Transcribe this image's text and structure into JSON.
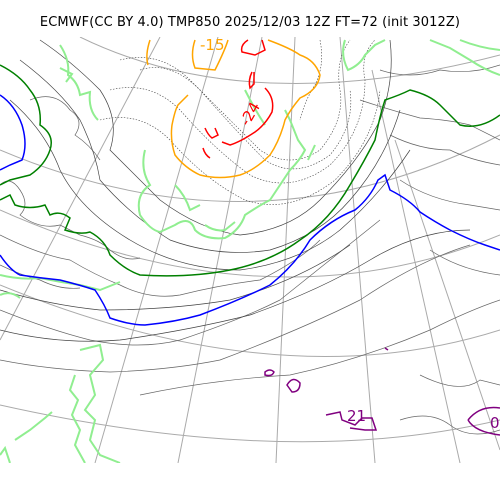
{
  "title": "ECMWF(CC BY 4.0) TMP850 2025/12/03 12Z FT=72 (init 3012Z)",
  "colors": {
    "graticule": "#aaaaaa",
    "coast": "#666666",
    "isotherm": "#444444",
    "pos_zero_line": "#90ee90",
    "minus_3": "#008000",
    "minus_6": "#0000ff",
    "minus_15": "#ffa500",
    "minus_24": "#ff0000",
    "plus_21": "#800080"
  },
  "contour_labels": {
    "minus_15": "-15",
    "minus_24": "-24",
    "plus_21": "21",
    "zero": "0"
  }
}
